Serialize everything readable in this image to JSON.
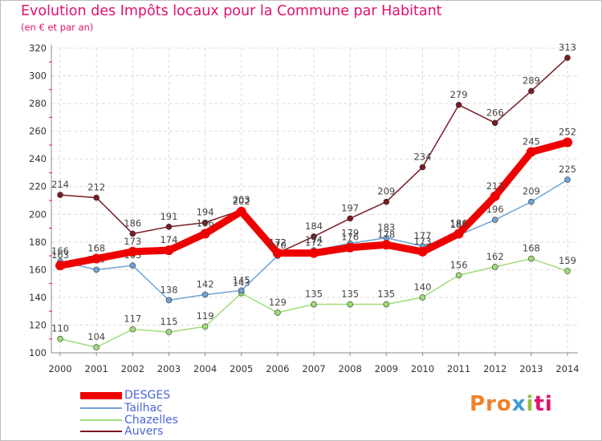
{
  "header": {
    "title": "Evolution des Impôts locaux pour la Commune par Habitant",
    "subtitle": "(en € et par an)"
  },
  "logo": {
    "part1": "Pro",
    "part2": "x",
    "part3": "i",
    "part4": "ti"
  },
  "chart_data": {
    "type": "line",
    "title": "Evolution des Impôts locaux pour la Commune par Habitant",
    "subtitle": "(en € et par an)",
    "xlabel": "",
    "ylabel": "",
    "ylim": [
      100,
      320
    ],
    "yticks": [
      100,
      120,
      140,
      160,
      180,
      200,
      220,
      240,
      260,
      280,
      300,
      320
    ],
    "categories": [
      "2000",
      "2001",
      "2002",
      "2003",
      "2004",
      "2005",
      "2006",
      "2007",
      "2008",
      "2009",
      "2010",
      "2011",
      "2012",
      "2013",
      "2014"
    ],
    "legend_position": "bottom-left",
    "series": [
      {
        "name": "Auvers",
        "color": "#7a1a22",
        "values": [
          214,
          212,
          186,
          191,
          194,
          203,
          172,
          184,
          197,
          209,
          234,
          279,
          266,
          289,
          313
        ]
      },
      {
        "name": "Chazelles",
        "color": "#9fdc78",
        "values": [
          110,
          104,
          117,
          115,
          119,
          143,
          129,
          135,
          135,
          135,
          140,
          156,
          162,
          168,
          159
        ]
      },
      {
        "name": "Tailhac",
        "color": "#6fa3d4",
        "values": [
          166,
          160,
          163,
          138,
          142,
          145,
          170,
          174,
          179,
          183,
          177,
          185,
          196,
          209,
          225
        ]
      },
      {
        "name": "DESGES",
        "color": "#ee0000",
        "values": [
          163,
          168,
          173,
          174,
          186,
          202,
          172,
          172,
          176,
          178,
          173,
          186,
          213,
          245,
          252
        ]
      }
    ],
    "legend": [
      "DESGES",
      "Tailhac",
      "Chazelles",
      "Auvers"
    ]
  }
}
